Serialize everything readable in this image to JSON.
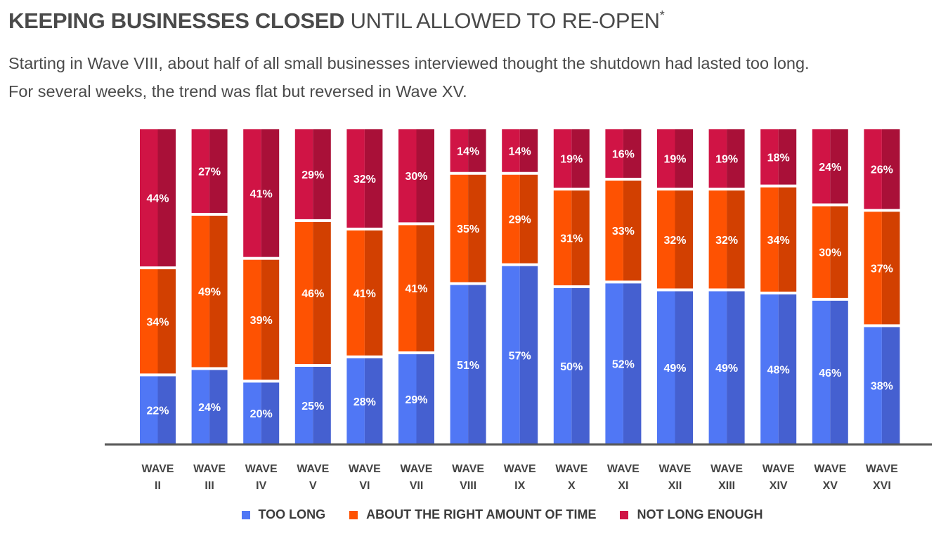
{
  "title_bold": "KEEPING BUSINESSES CLOSED",
  "title_rest": " UNTIL ALLOWED TO RE-OPEN",
  "title_mark": "*",
  "subtitle_line1": "Starting in Wave VIII, about half of all small businesses interviewed thought the shutdown had lasted too long.",
  "subtitle_line2": "For several weeks, the trend was flat but reversed in Wave XV.",
  "colors": {
    "too_long": "#5077f5",
    "too_long_dark": "#4560d0",
    "about_right": "#fe5202",
    "about_right_dark": "#d24001",
    "not_long_enough": "#d01445",
    "not_long_enough_dark": "#a91038",
    "axis": "#555555",
    "label_text": "#ffffff"
  },
  "chart_data": {
    "type": "bar",
    "stacked": true,
    "categories": [
      [
        "WAVE",
        "II"
      ],
      [
        "WAVE",
        "III"
      ],
      [
        "WAVE",
        "IV"
      ],
      [
        "WAVE",
        "V"
      ],
      [
        "WAVE",
        "VI"
      ],
      [
        "WAVE",
        "VII"
      ],
      [
        "WAVE",
        "VIII"
      ],
      [
        "WAVE",
        "IX"
      ],
      [
        "WAVE",
        "X"
      ],
      [
        "WAVE",
        "XI"
      ],
      [
        "WAVE",
        "XII"
      ],
      [
        "WAVE",
        "XIII"
      ],
      [
        "WAVE",
        "XIV"
      ],
      [
        "WAVE",
        "XV"
      ],
      [
        "WAVE",
        "XVI"
      ]
    ],
    "series": [
      {
        "name": "TOO LONG",
        "key": "too_long",
        "values": [
          22,
          24,
          20,
          25,
          28,
          29,
          51,
          57,
          50,
          52,
          49,
          49,
          48,
          46,
          38
        ]
      },
      {
        "name": "ABOUT THE RIGHT AMOUNT OF TIME",
        "key": "about_right",
        "values": [
          34,
          49,
          39,
          46,
          41,
          41,
          35,
          29,
          31,
          33,
          32,
          32,
          34,
          30,
          37
        ]
      },
      {
        "name": "NOT LONG ENOUGH",
        "key": "not_long_enough",
        "values": [
          44,
          27,
          41,
          29,
          32,
          30,
          14,
          14,
          19,
          16,
          19,
          19,
          18,
          24,
          26
        ]
      }
    ],
    "value_suffix": "%",
    "legend": "bottom-center",
    "grid": false
  }
}
